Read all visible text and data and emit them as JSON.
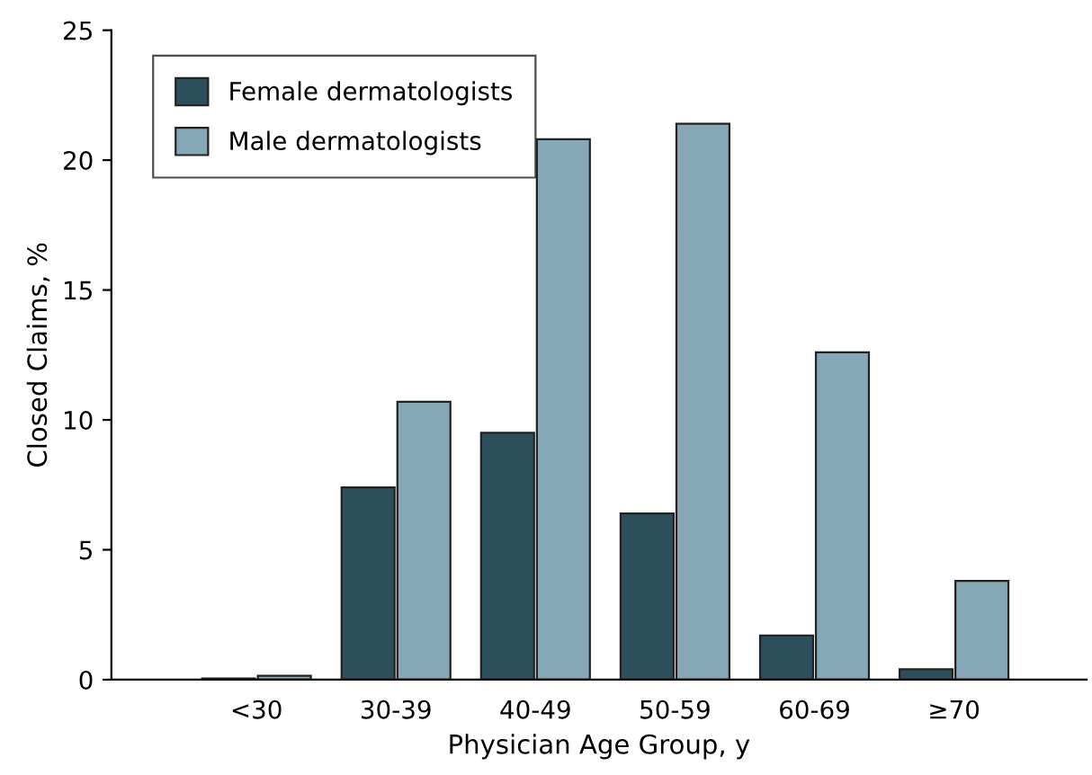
{
  "chart_data": {
    "type": "bar",
    "xlabel": "Physician Age Group, y",
    "ylabel": "Closed Claims, %",
    "categories": [
      "<30",
      "30-39",
      "40-49",
      "50-59",
      "60-69",
      "≥70"
    ],
    "series": [
      {
        "name": "Female dermatologists",
        "color": "#2d4f5c",
        "values": [
          0.05,
          7.4,
          9.5,
          6.4,
          1.7,
          0.4
        ]
      },
      {
        "name": "Male dermatologists",
        "color": "#86a8b6",
        "values": [
          0.15,
          10.7,
          20.8,
          21.4,
          12.6,
          3.8
        ]
      }
    ],
    "ylim": [
      0,
      25
    ],
    "yticks": [
      0,
      5,
      10,
      15,
      20,
      25
    ],
    "grid": false,
    "legend": "top left"
  }
}
